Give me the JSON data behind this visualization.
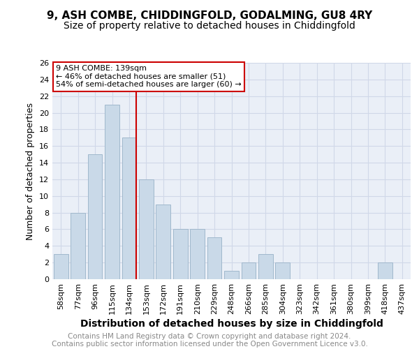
{
  "title1": "9, ASH COMBE, CHIDDINGFOLD, GODALMING, GU8 4RY",
  "title2": "Size of property relative to detached houses in Chiddingfold",
  "xlabel": "Distribution of detached houses by size in Chiddingfold",
  "ylabel": "Number of detached properties",
  "categories": [
    "58sqm",
    "77sqm",
    "96sqm",
    "115sqm",
    "134sqm",
    "153sqm",
    "172sqm",
    "191sqm",
    "210sqm",
    "229sqm",
    "248sqm",
    "266sqm",
    "285sqm",
    "304sqm",
    "323sqm",
    "342sqm",
    "361sqm",
    "380sqm",
    "399sqm",
    "418sqm",
    "437sqm"
  ],
  "values": [
    3,
    8,
    15,
    21,
    17,
    12,
    9,
    6,
    6,
    5,
    1,
    2,
    3,
    2,
    0,
    0,
    0,
    0,
    0,
    2,
    0
  ],
  "bar_color": "#c9d9e8",
  "bar_edge_color": "#a0b8cc",
  "vline_color": "#cc0000",
  "annotation_text": "9 ASH COMBE: 139sqm\n← 46% of detached houses are smaller (51)\n54% of semi-detached houses are larger (60) →",
  "annotation_box_color": "#ffffff",
  "annotation_box_edge": "#cc0000",
  "ylim": [
    0,
    26
  ],
  "yticks": [
    0,
    2,
    4,
    6,
    8,
    10,
    12,
    14,
    16,
    18,
    20,
    22,
    24,
    26
  ],
  "grid_color": "#d0d8e8",
  "bg_color": "#eaeff7",
  "title1_fontsize": 11,
  "title2_fontsize": 10,
  "xlabel_fontsize": 10,
  "ylabel_fontsize": 9,
  "tick_labelsize": 8,
  "annot_fontsize": 8,
  "footer_fontsize": 7.5,
  "footer_text": "Contains HM Land Registry data © Crown copyright and database right 2024.\nContains public sector information licensed under the Open Government Licence v3.0.",
  "footer_color": "#888888"
}
